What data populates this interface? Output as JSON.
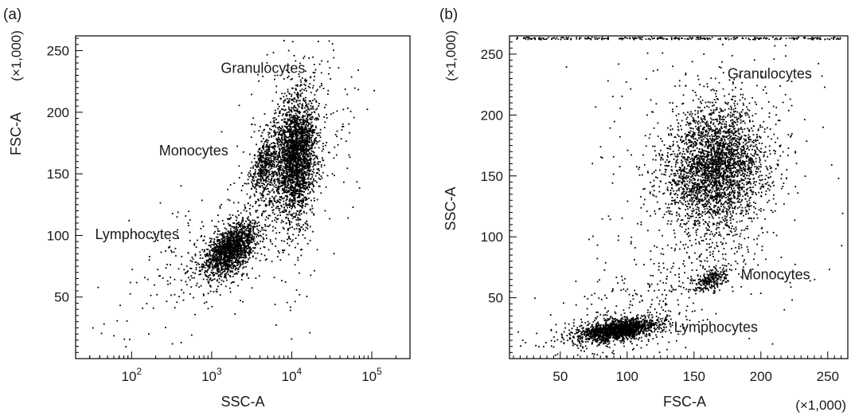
{
  "chart_data": [
    {
      "type": "scatter",
      "panel_label": "(a)",
      "xlabel": "SSC-A",
      "ylabel": "FSC-A",
      "y_multiplier": "(×1,000)",
      "xscale": "log",
      "xlim": [
        20,
        300000
      ],
      "ylim": [
        0,
        262
      ],
      "x_ticks": [
        {
          "value": 100,
          "base": "10",
          "exp": "2"
        },
        {
          "value": 1000,
          "base": "10",
          "exp": "3"
        },
        {
          "value": 10000,
          "base": "10",
          "exp": "4"
        },
        {
          "value": 100000,
          "base": "10",
          "exp": "5"
        }
      ],
      "y_ticks": [
        {
          "value": 50,
          "label": "50"
        },
        {
          "value": 100,
          "label": "100"
        },
        {
          "value": 150,
          "label": "150"
        },
        {
          "value": 200,
          "label": "200"
        },
        {
          "value": 250,
          "label": "250"
        }
      ],
      "annotations": [
        {
          "text": "Granulocytes",
          "x": 1300,
          "y": 232
        },
        {
          "text": "Monocytes",
          "x": 220,
          "y": 165
        },
        {
          "text": "Lymphocytes",
          "x": 35,
          "y": 97
        }
      ],
      "populations": [
        {
          "name": "Granulocytes",
          "x": 11000,
          "y": 165,
          "count": 2600
        },
        {
          "name": "Monocytes",
          "x": 4500,
          "y": 158,
          "count": 500
        },
        {
          "name": "Lymphocytes",
          "x": 1700,
          "y": 89,
          "count": 1700
        }
      ]
    },
    {
      "type": "scatter",
      "panel_label": "(b)",
      "xlabel": "FSC-A",
      "ylabel": "SSC-A",
      "x_multiplier": "(×1,000)",
      "y_multiplier": "(×1,000)",
      "xscale": "linear",
      "xlim": [
        12,
        265
      ],
      "ylim": [
        0,
        265
      ],
      "x_ticks": [
        {
          "value": 50,
          "label": "50"
        },
        {
          "value": 100,
          "label": "100"
        },
        {
          "value": 150,
          "label": "150"
        },
        {
          "value": 200,
          "label": "200"
        },
        {
          "value": 250,
          "label": "250"
        }
      ],
      "y_ticks": [
        {
          "value": 50,
          "label": "50"
        },
        {
          "value": 100,
          "label": "100"
        },
        {
          "value": 150,
          "label": "150"
        },
        {
          "value": 200,
          "label": "200"
        },
        {
          "value": 250,
          "label": "250"
        }
      ],
      "annotations": [
        {
          "text": "Granulocytes",
          "x": 175,
          "y": 230
        },
        {
          "text": "Monocytes",
          "x": 185,
          "y": 65
        },
        {
          "text": "Lymphocytes",
          "x": 135,
          "y": 22
        }
      ],
      "populations": [
        {
          "name": "Granulocytes",
          "x": 165,
          "y": 158,
          "count": 3200
        },
        {
          "name": "Monocytes",
          "x": 162,
          "y": 65,
          "count": 260
        },
        {
          "name": "Lymphocytes",
          "x": 92,
          "y": 24,
          "count": 1800
        }
      ]
    }
  ]
}
